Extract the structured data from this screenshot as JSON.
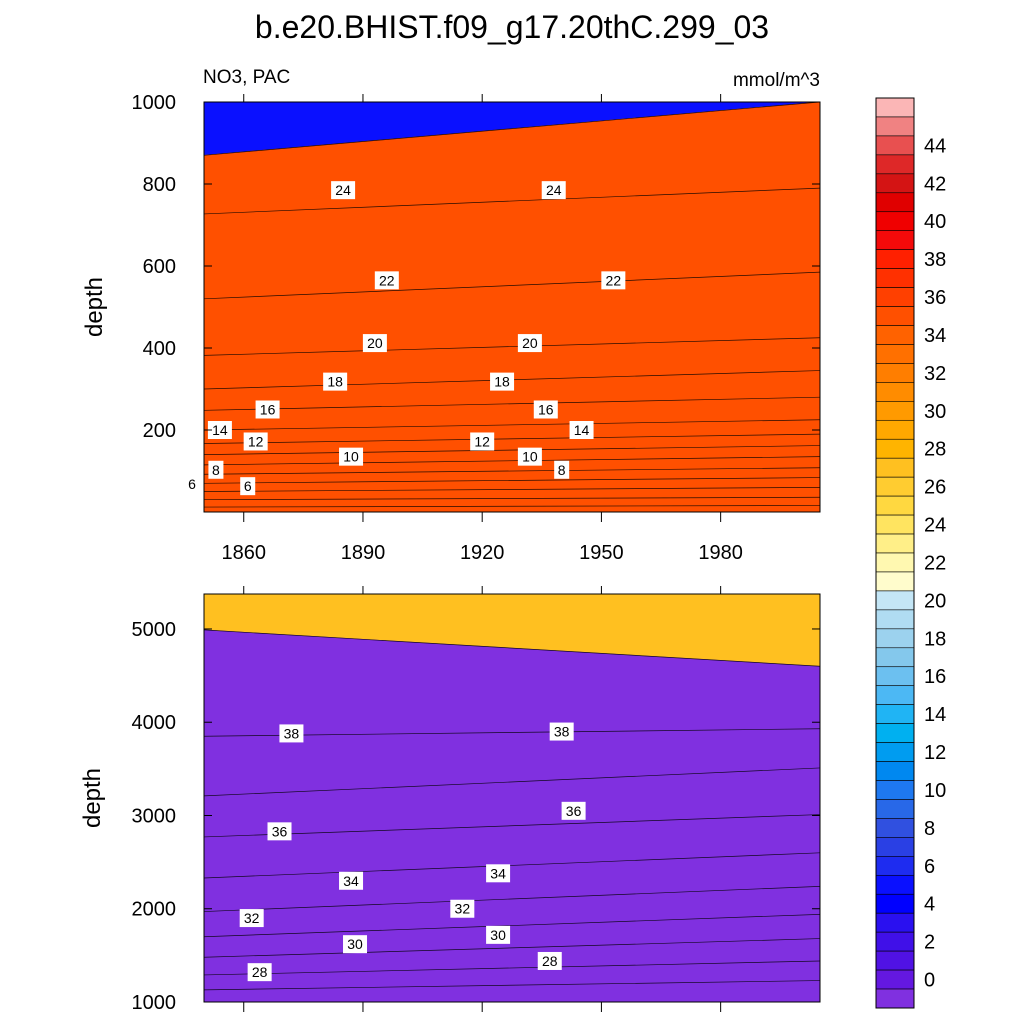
{
  "figure_title": "b.e20.BHIST.f09_g17.20thC.299_03",
  "panel_left_label": "NO3, PAC",
  "units": "mmol/m^3",
  "chart_data": [
    {
      "type": "contour",
      "title": "NO3, PAC",
      "units": "mmol/m^3",
      "xlabel": "",
      "ylabel": "depth",
      "xlim": [
        1850,
        2005
      ],
      "ylim": [
        1000,
        0
      ],
      "xticks": [
        "1860",
        "1890",
        "1920",
        "1950",
        "1980"
      ],
      "yticks": [
        "200",
        "400",
        "600",
        "800",
        "1000"
      ],
      "ytick_values": [
        200,
        400,
        600,
        800,
        1000
      ],
      "xtick_values": [
        1860,
        1890,
        1920,
        1950,
        1980
      ],
      "contour_depth_start": [
        12,
        30,
        50,
        70,
        92,
        115,
        140,
        167,
        200,
        248,
        300,
        382,
        520,
        727,
        870
      ],
      "contour_depth_end": [
        16,
        36,
        60,
        84,
        108,
        135,
        162,
        190,
        225,
        280,
        345,
        425,
        585,
        790,
        1000
      ],
      "labels": [
        {
          "text": "6",
          "year": 1861,
          "depth": 63
        },
        {
          "text": "6",
          "year": 1847,
          "depth": 68
        },
        {
          "text": "8",
          "year": 1853,
          "depth": 103
        },
        {
          "text": "8",
          "year": 1940,
          "depth": 103
        },
        {
          "text": "10",
          "year": 1887,
          "depth": 135
        },
        {
          "text": "10",
          "year": 1932,
          "depth": 135
        },
        {
          "text": "12",
          "year": 1863,
          "depth": 172
        },
        {
          "text": "12",
          "year": 1920,
          "depth": 172
        },
        {
          "text": "14",
          "year": 1854,
          "depth": 200
        },
        {
          "text": "14",
          "year": 1945,
          "depth": 200
        },
        {
          "text": "16",
          "year": 1866,
          "depth": 250
        },
        {
          "text": "16",
          "year": 1936,
          "depth": 250
        },
        {
          "text": "18",
          "year": 1883,
          "depth": 318
        },
        {
          "text": "18",
          "year": 1925,
          "depth": 318
        },
        {
          "text": "20",
          "year": 1893,
          "depth": 412
        },
        {
          "text": "20",
          "year": 1932,
          "depth": 412
        },
        {
          "text": "22",
          "year": 1896,
          "depth": 565
        },
        {
          "text": "22",
          "year": 1953,
          "depth": 565
        },
        {
          "text": "24",
          "year": 1885,
          "depth": 785
        },
        {
          "text": "24",
          "year": 1938,
          "depth": 785
        }
      ]
    },
    {
      "type": "contour",
      "title": "",
      "xlabel": "",
      "ylabel": "depth",
      "xlim": [
        1850,
        2005
      ],
      "ylim": [
        5375,
        1000
      ],
      "yticks": [
        "1000",
        "2000",
        "3000",
        "4000",
        "5000"
      ],
      "ytick_values": [
        1000,
        2000,
        3000,
        4000,
        5000
      ],
      "contour_depth_start": [
        1130,
        1290,
        1480,
        1700,
        1970,
        2330,
        2770,
        3210,
        3850,
        4990
      ],
      "contour_depth_end": [
        1230,
        1440,
        1680,
        1940,
        2240,
        2600,
        3010,
        3510,
        3930,
        4600
      ],
      "labels": [
        {
          "text": "28",
          "year": 1864,
          "depth": 1320
        },
        {
          "text": "28",
          "year": 1937,
          "depth": 1440
        },
        {
          "text": "30",
          "year": 1888,
          "depth": 1620
        },
        {
          "text": "30",
          "year": 1924,
          "depth": 1720
        },
        {
          "text": "32",
          "year": 1862,
          "depth": 1900
        },
        {
          "text": "32",
          "year": 1915,
          "depth": 2000
        },
        {
          "text": "34",
          "year": 1887,
          "depth": 2300
        },
        {
          "text": "34",
          "year": 1924,
          "depth": 2380
        },
        {
          "text": "36",
          "year": 1869,
          "depth": 2830
        },
        {
          "text": "36",
          "year": 1943,
          "depth": 3050
        },
        {
          "text": "38",
          "year": 1872,
          "depth": 3880
        },
        {
          "text": "38",
          "year": 1940,
          "depth": 3900
        }
      ]
    }
  ],
  "colorbar": {
    "tick_labels": [
      "44",
      "42",
      "40",
      "38",
      "36",
      "34",
      "32",
      "30",
      "28",
      "26",
      "24",
      "22",
      "20",
      "18",
      "16",
      "14",
      "12",
      "10",
      "8",
      "6",
      "4",
      "2",
      "0"
    ],
    "levels_top_to_bottom": [
      46,
      45,
      44,
      43,
      42,
      41,
      40,
      39,
      38,
      37,
      36,
      35,
      34,
      33,
      32,
      31,
      30,
      29,
      28,
      27,
      26,
      25,
      24,
      23,
      22,
      21,
      20,
      19,
      18,
      17,
      16,
      15,
      14,
      13,
      12,
      11,
      10,
      9,
      8,
      7,
      6,
      5,
      4,
      3,
      2,
      1,
      0,
      -1
    ],
    "colors": [
      "#fbb6b6",
      "#f08282",
      "#e85050",
      "#de2828",
      "#d41414",
      "#e00000",
      "#f00000",
      "#f40a0a",
      "#ff2000",
      "#ff3000",
      "#ff4000",
      "#ff5000",
      "#ff6200",
      "#ff7000",
      "#ff7e00",
      "#ff8c00",
      "#ff9a00",
      "#ffa800",
      "#ffb400",
      "#ffc020",
      "#ffcc30",
      "#ffd840",
      "#ffe460",
      "#ffef88",
      "#fff8b0",
      "#fffccc",
      "#c4e6f6",
      "#b0dcf2",
      "#9cd2ee",
      "#84c8ec",
      "#6cc0f0",
      "#4cb8f4",
      "#20b4f4",
      "#00b0f0",
      "#009cf0",
      "#0088f0",
      "#1e78f0",
      "#2868e8",
      "#3050e0",
      "#2a40e4",
      "#1e2cf0",
      "#0a10ff",
      "#0000ff",
      "#2a10f0",
      "#4010e8",
      "#5012e4",
      "#6418e0",
      "#8030e0"
    ]
  }
}
